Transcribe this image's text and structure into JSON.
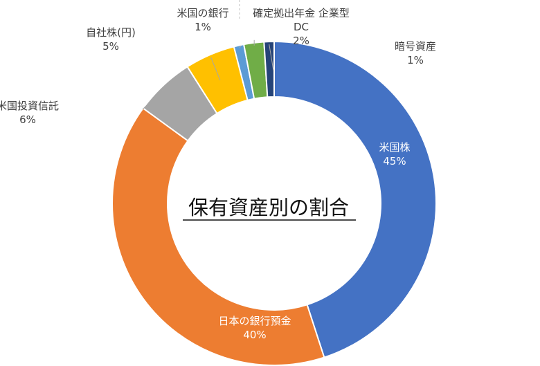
{
  "chart_data": {
    "type": "pie",
    "title": "保有資産別の割合",
    "slices": [
      {
        "label": "米国株",
        "value": 45,
        "value_label": "45%",
        "color": "#4472C4"
      },
      {
        "label": "日本の銀行預金",
        "value": 40,
        "value_label": "40%",
        "color": "#ED7D31"
      },
      {
        "label": "米国投資信託",
        "value": 6,
        "value_label": "6%",
        "color": "#A5A5A5"
      },
      {
        "label": "自社株(円)",
        "value": 5,
        "value_label": "5%",
        "color": "#FFC000"
      },
      {
        "label": "米国の銀行",
        "value": 1,
        "value_label": "1%",
        "color": "#5B9BD5"
      },
      {
        "label_lines": [
          "確定拠出年金 企業型",
          "DC"
        ],
        "value": 2,
        "value_label": "2%",
        "color": "#70AD47"
      },
      {
        "label": "暗号資産",
        "value": 1,
        "value_label": "1%",
        "color": "#264478"
      }
    ]
  }
}
